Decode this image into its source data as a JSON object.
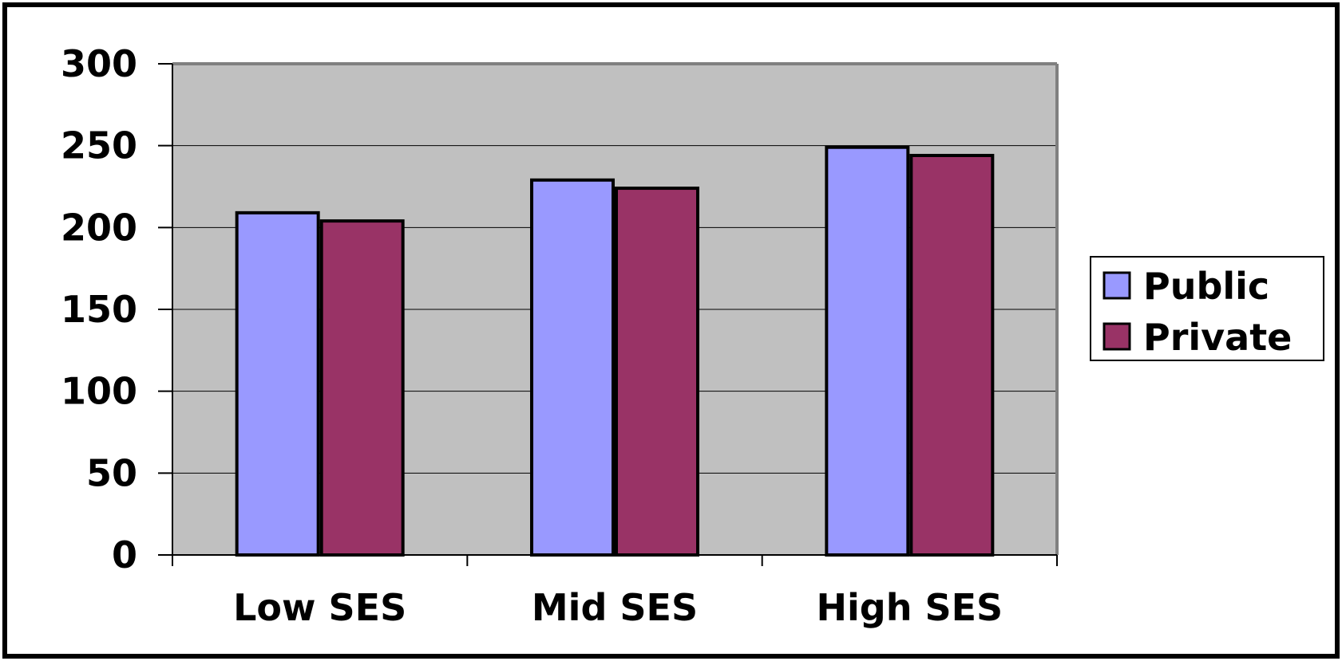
{
  "chart_data": {
    "type": "bar",
    "categories": [
      "Low SES",
      "Mid SES",
      "High SES"
    ],
    "series": [
      {
        "name": "Public",
        "values": [
          209,
          229,
          249
        ],
        "color": "#9999ff"
      },
      {
        "name": "Private",
        "values": [
          204,
          224,
          244
        ],
        "color": "#993366"
      }
    ],
    "yticks": [
      "0",
      "50",
      "100",
      "150",
      "200",
      "250",
      "300"
    ],
    "ylim": [
      0,
      300
    ],
    "ystep": 50,
    "grid": true,
    "plot_background": "#c0c0c0",
    "legend_position": "right"
  }
}
